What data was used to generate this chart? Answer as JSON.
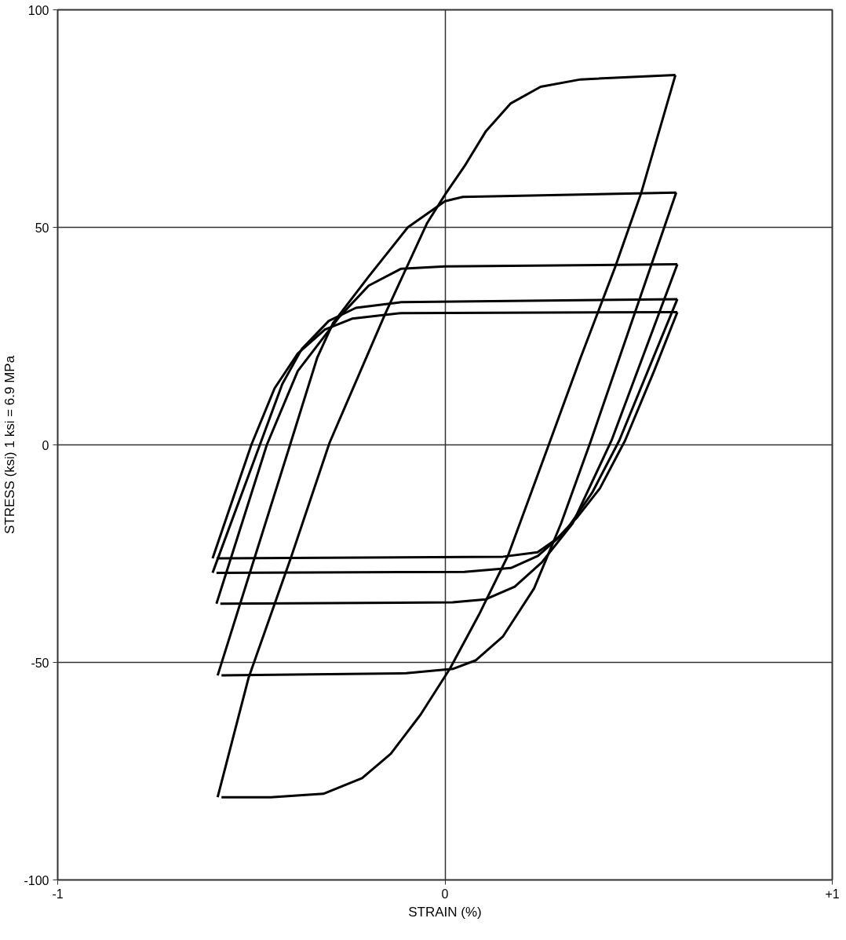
{
  "chart_data": {
    "type": "line",
    "xlabel": "STRAIN (%)",
    "ylabel": "STRESS (ksi) 1 ksi = 6.9 MPa",
    "xlim": [
      -1,
      1
    ],
    "ylim": [
      -100,
      100
    ],
    "xticks": [
      -1,
      0,
      {
        "value": 1,
        "label": "+1"
      }
    ],
    "yticks": [
      -100,
      -50,
      0,
      50,
      100
    ],
    "grid": true,
    "line_style": "solid",
    "series": [
      {
        "color": "#000000",
        "x": [
          -0.587,
          -0.507,
          -0.398,
          -0.298,
          -0.155,
          -0.046,
          0,
          0.05,
          0.105,
          0.17,
          0.247,
          0.35,
          0.595
        ],
        "values": [
          -81,
          -53.5,
          -26,
          0.5,
          30,
          51,
          57.5,
          64,
          72,
          78.5,
          82.3,
          84,
          85
        ]
      },
      {
        "color": "#000000",
        "x": [
          -0.577,
          -0.45,
          -0.314,
          -0.214,
          -0.14,
          -0.063,
          0.013,
          0.088,
          0.163,
          0.272,
          0.35,
          0.44,
          0.507,
          0.595
        ],
        "values": [
          -81,
          -81,
          -80.2,
          -76.6,
          -71,
          -62,
          -51.4,
          -39,
          -25.4,
          1,
          20,
          41,
          58,
          85
        ]
      },
      {
        "color": "#000000",
        "x": [
          -0.587,
          -0.4,
          -0.33,
          -0.289,
          -0.197,
          -0.096,
          0,
          0.046,
          0.597
        ],
        "values": [
          -53,
          0,
          20,
          28,
          38.7,
          50,
          56,
          57,
          58
        ]
      },
      {
        "color": "#000000",
        "x": [
          -0.577,
          -0.1,
          0.02,
          0.08,
          0.15,
          0.23,
          0.3,
          0.377,
          0.597
        ],
        "values": [
          -53,
          -52.5,
          -51.5,
          -49.5,
          -44,
          -33,
          -18,
          1,
          58
        ]
      },
      {
        "color": "#000000",
        "x": [
          -0.59,
          -0.46,
          -0.38,
          -0.273,
          -0.197,
          -0.113,
          0,
          0.6
        ],
        "values": [
          -36.5,
          0,
          17,
          29.4,
          36.6,
          40.5,
          41,
          41.5
        ]
      },
      {
        "color": "#000000",
        "x": [
          -0.58,
          0.02,
          0.105,
          0.18,
          0.25,
          0.33,
          0.43,
          0.6
        ],
        "values": [
          -36.5,
          -36.2,
          -35.5,
          -32.6,
          -27,
          -18,
          1,
          41.5
        ]
      },
      {
        "color": "#000000",
        "x": [
          -0.6,
          -0.478,
          -0.42,
          -0.37,
          -0.3,
          -0.23,
          -0.113,
          0.6
        ],
        "values": [
          -29.4,
          0,
          14,
          22,
          28.5,
          31.5,
          32.8,
          33.5
        ]
      },
      {
        "color": "#000000",
        "x": [
          -0.59,
          0.05,
          0.17,
          0.24,
          0.31,
          0.38,
          0.45,
          0.6
        ],
        "values": [
          -29.4,
          -29.2,
          -28.3,
          -25.5,
          -20,
          -11,
          1,
          33.5
        ]
      },
      {
        "color": "#000000",
        "x": [
          -0.6,
          -0.5,
          -0.44,
          -0.38,
          -0.31,
          -0.24,
          -0.113,
          0.6
        ],
        "values": [
          -26.1,
          0,
          13,
          21,
          26.5,
          29,
          30.3,
          30.5
        ]
      },
      {
        "color": "#000000",
        "x": [
          -0.59,
          0.15,
          0.239,
          0.29,
          0.34,
          0.4,
          0.465,
          0.54,
          0.6
        ],
        "values": [
          -26.1,
          -25.7,
          -24.7,
          -21.5,
          -16.8,
          -10,
          1,
          17,
          30.5
        ]
      }
    ]
  }
}
